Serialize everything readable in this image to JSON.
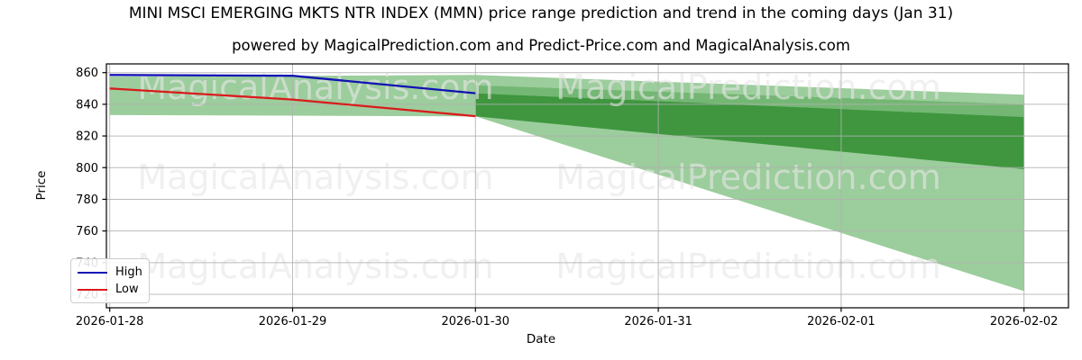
{
  "title": "MINI MSCI EMERGING MKTS NTR INDEX (MMN) price range prediction and trend in the coming days (Jan 31)",
  "subtitle": "powered by MagicalPrediction.com and Predict-Price.com and MagicalAnalysis.com",
  "axes": {
    "x_label": "Date",
    "y_label": "Price"
  },
  "legend": {
    "items": [
      {
        "label": "High",
        "color": "#1212b4"
      },
      {
        "label": "Low",
        "color": "#d91c1c"
      }
    ]
  },
  "watermarks": {
    "left_text": "MagicalAnalysis.com",
    "right_text": "MagicalPrediction.com"
  },
  "colors": {
    "band_light": "#9ccd9c",
    "band_medium": "#74b774",
    "band_dark": "#3f963f",
    "high_line": "#1212b4",
    "low_line": "#d91c1c",
    "grid": "#b0b0b0",
    "spine": "#000000"
  },
  "chart_data": {
    "type": "line",
    "title": "MINI MSCI EMERGING MKTS NTR INDEX (MMN) price range prediction and trend in the coming days (Jan 31)",
    "xlabel": "Date",
    "ylabel": "Price",
    "x": [
      "2026-01-28",
      "2026-01-29",
      "2026-01-30",
      "2026-01-31",
      "2026-02-01",
      "2026-02-02"
    ],
    "yticks": [
      720,
      740,
      760,
      780,
      800,
      820,
      840,
      860
    ],
    "ylim": [
      711,
      866
    ],
    "grid": true,
    "legend_position": "lower left",
    "series": [
      {
        "name": "High",
        "color": "#1212b4",
        "x": [
          "2026-01-28",
          "2026-01-29",
          "2026-01-30"
        ],
        "values": [
          858.5,
          858.0,
          847.0
        ]
      },
      {
        "name": "Low",
        "color": "#d91c1c",
        "x": [
          "2026-01-28",
          "2026-01-29",
          "2026-01-30"
        ],
        "values": [
          850.0,
          843.0,
          832.5
        ]
      }
    ],
    "bands": [
      {
        "name": "observed-range",
        "shade": "light",
        "x": [
          "2026-01-28",
          "2026-01-30"
        ],
        "top": [
          857.5,
          858.5
        ],
        "bottom": [
          833.2,
          832.4
        ]
      },
      {
        "name": "forecast-range-outer",
        "shade": "light",
        "x": [
          "2026-01-30",
          "2026-02-02"
        ],
        "top": [
          858.5,
          846.0
        ],
        "bottom": [
          832.4,
          722.0
        ]
      },
      {
        "name": "forecast-range-mid",
        "shade": "medium",
        "x": [
          "2026-01-30",
          "2026-02-02"
        ],
        "top": [
          852.0,
          840.0
        ],
        "bottom": [
          847.0,
          832.0
        ]
      },
      {
        "name": "forecast-range-core",
        "shade": "dark",
        "x": [
          "2026-01-30",
          "2026-02-02"
        ],
        "top": [
          847.0,
          832.0
        ],
        "bottom": [
          832.4,
          799.0
        ]
      }
    ]
  }
}
